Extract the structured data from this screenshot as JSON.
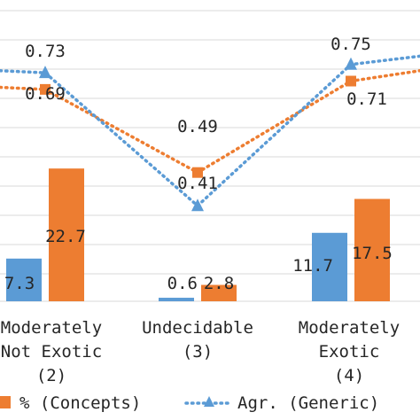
{
  "chart_data": {
    "type": "bar",
    "categories": [
      "Moderately Not Exotic (2)",
      "Undecidable (3)",
      "Moderately Exotic (4)"
    ],
    "category_label_lines": [
      [
        "Moderately",
        "Not Exotic",
        "(2)"
      ],
      [
        "Undecidable",
        "(3)"
      ],
      [
        "Moderately",
        "Exotic",
        "(4)"
      ]
    ],
    "series": [
      {
        "name": "% (Concepts)",
        "kind": "bar",
        "color": "#ed7d31",
        "values": [
          22.7,
          2.8,
          17.5
        ],
        "labels": [
          "22.7",
          "2.8",
          "17.5"
        ]
      },
      {
        "name": "",
        "kind": "bar",
        "color": "#5b9bd5",
        "values": [
          7.3,
          0.6,
          11.7
        ],
        "labels": [
          "7.3",
          "0.6",
          "11.7"
        ]
      },
      {
        "name": "",
        "kind": "line",
        "color": "#ed7d31",
        "marker": "square",
        "values": [
          0.69,
          0.49,
          0.71
        ],
        "labels": [
          "0.69",
          "0.49",
          "0.71"
        ]
      },
      {
        "name": "Agr. (Generic)",
        "kind": "line",
        "color": "#5b9bd5",
        "marker": "triangle",
        "values": [
          0.73,
          0.41,
          0.75
        ],
        "labels": [
          "0.73",
          "0.41",
          "0.75"
        ]
      }
    ],
    "title": "",
    "xlabel": "",
    "ylabel": "",
    "grid": true,
    "legend_position": "bottom",
    "legend_entries": [
      {
        "marker": "square",
        "color": "#ed7d31",
        "label": "% (Concepts)"
      },
      {
        "marker": "dotted-line-triangle",
        "color": "#5b9bd5",
        "label": "Agr. (Generic)"
      }
    ]
  }
}
